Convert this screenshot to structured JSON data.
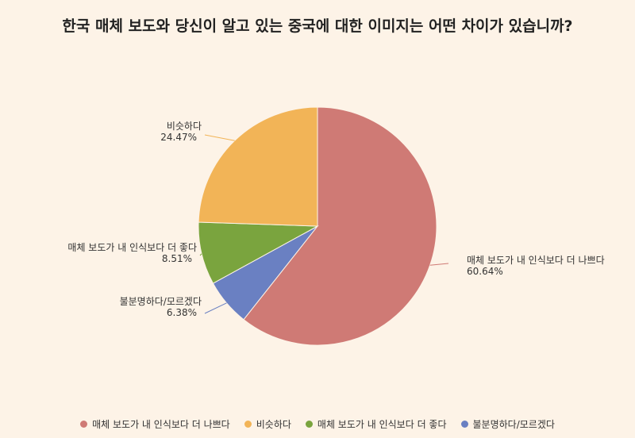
{
  "chart_data": {
    "type": "pie",
    "title": "한국 매체 보도와 당신이 알고 있는 중국에 대한 이미지는 어떤 차이가 있습니까?",
    "slices": [
      {
        "label": "매체 보도가 내 인식보다 더 나쁘다",
        "value": 60.64,
        "value_label": "60.64%",
        "color": "#cf7a75"
      },
      {
        "label": "불분명하다/모르겠다",
        "value": 6.38,
        "value_label": "6.38%",
        "color": "#6a80c2"
      },
      {
        "label": "매체 보도가 내 인식보다 더 좋다",
        "value": 8.51,
        "value_label": "8.51%",
        "color": "#7aa43e"
      },
      {
        "label": "비슷하다",
        "value": 24.47,
        "value_label": "24.47%",
        "color": "#f2b457"
      }
    ],
    "legend": [
      {
        "label": "매체 보도가 내 인식보다 더 나쁘다",
        "color": "#cf7a75"
      },
      {
        "label": "비슷하다",
        "color": "#f2b457"
      },
      {
        "label": "매체 보도가 내 인식보다 더 좋다",
        "color": "#7aa43e"
      },
      {
        "label": "불분명하다/모르겠다",
        "color": "#6a80c2"
      }
    ],
    "legend_position": "bottom"
  }
}
